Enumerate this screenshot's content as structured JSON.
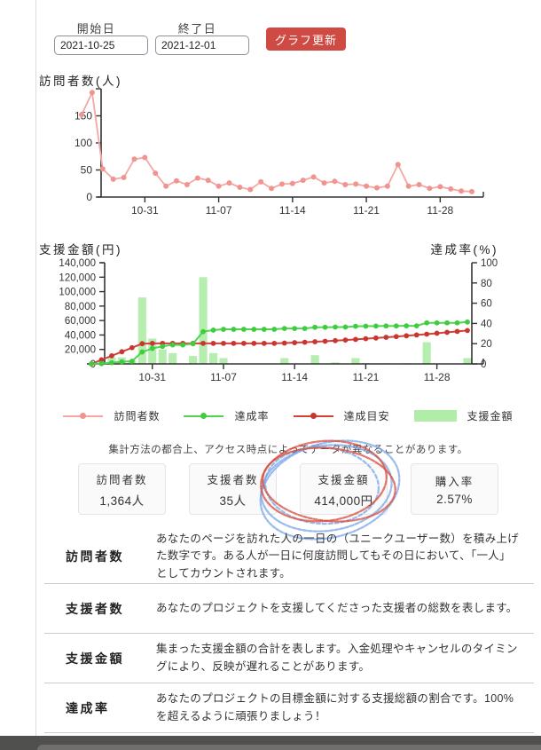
{
  "form": {
    "start_label": "開始日",
    "start_value": "2021-10-25",
    "end_label": "終了日",
    "end_value": "2021-12-01",
    "update_button": "グラフ更新"
  },
  "note": "集計方法の都合上、アクセス時点によってデータが異なることがあります。",
  "legend": [
    {
      "label": "訪問者数",
      "type": "line",
      "color": "#f4a7a3",
      "dot": "#ef948f"
    },
    {
      "label": "達成率",
      "type": "line",
      "color": "#52d353",
      "dot": "#3ecd3e"
    },
    {
      "label": "達成目安",
      "type": "line",
      "color": "#d2423b",
      "dot": "#c9362f"
    },
    {
      "label": "支援金額",
      "type": "bar",
      "color": "#b0eda9"
    }
  ],
  "stats": [
    {
      "label": "訪問者数",
      "value": "1,364人"
    },
    {
      "label": "支援者数",
      "value": "35人"
    },
    {
      "label": "支援金額",
      "value": "414,000円",
      "annotated": true
    },
    {
      "label": "購入率",
      "value": "2.57%"
    }
  ],
  "annotation": {
    "type": "hand-drawn-scribble-circles",
    "around": "支援金額",
    "colors": [
      "#d84b3a",
      "#7aa6e8"
    ]
  },
  "definitions": [
    {
      "term": "訪問者数",
      "description": "あなたのページを訪れた人の一日の（ユニークユーザー数）を積み上げた数字です。ある人が一日に何度訪問してもその日において、「一人」としてカウントされます。"
    },
    {
      "term": "支援者数",
      "description": "あなたのプロジェクトを支援してくださった支援者の総数を表します。"
    },
    {
      "term": "支援金額",
      "description": "集まった支援金額の合計を表します。入金処理やキャンセルのタイミングにより、反映が遅れることがあります。"
    },
    {
      "term": "達成率",
      "description": "あなたのプロジェクトの目標金額に対する支援総額の割合です。100%を超えるように頑張りましょう！"
    }
  ],
  "chart_data": [
    {
      "type": "line",
      "title": "訪問者数(人)",
      "series_name": "訪問者数",
      "color": "#f4a7a3",
      "dot_color": "#ef948f",
      "x_range": [
        "2021-10-25",
        "2021-12-01"
      ],
      "x_tick_labels": [
        "10-31",
        "11-07",
        "11-14",
        "11-21",
        "11-28"
      ],
      "x_tick_indices": [
        6,
        13,
        20,
        27,
        34
      ],
      "ylim": [
        0,
        200
      ],
      "y_ticks": [
        0,
        50,
        100,
        150
      ],
      "values": [
        152,
        193,
        52,
        33,
        36,
        70,
        73,
        44,
        20,
        30,
        23,
        35,
        31,
        20,
        26,
        18,
        14,
        28,
        16,
        24,
        25,
        31,
        37,
        26,
        29,
        23,
        24,
        20,
        17,
        20,
        60,
        20,
        23,
        16,
        19,
        15,
        11,
        10
      ]
    },
    {
      "type": "bar+line",
      "ylabel_left": "支援金額(円)",
      "ylabel_right": "達成率(%)",
      "ylim_left": [
        0,
        140000
      ],
      "y_ticks_left": [
        0,
        20000,
        40000,
        60000,
        80000,
        100000,
        120000,
        140000
      ],
      "ylim_right": [
        0,
        100
      ],
      "y_ticks_right": [
        0,
        20,
        40,
        60,
        80,
        100
      ],
      "x_range": [
        "2021-10-25",
        "2021-12-01"
      ],
      "x_tick_labels": [
        "10-31",
        "11-07",
        "11-14",
        "11-21",
        "11-28"
      ],
      "x_tick_indices": [
        6,
        13,
        20,
        27,
        34
      ],
      "series": [
        {
          "name": "支援金額",
          "type": "bar",
          "axis": "left",
          "color": "#b0eda9",
          "values": [
            1000,
            2000,
            9000,
            9000,
            5000,
            92000,
            35000,
            20000,
            15000,
            0,
            11000,
            120000,
            15000,
            8000,
            0,
            0,
            0,
            0,
            0,
            8000,
            0,
            0,
            12000,
            0,
            2000,
            0,
            8000,
            1000,
            1000,
            1000,
            0,
            1000,
            0,
            30000,
            0,
            0,
            0,
            8000
          ]
        },
        {
          "name": "達成率",
          "type": "line",
          "axis": "right",
          "color": "#52d353",
          "dot_color": "#3ecd3e",
          "values": [
            0.1,
            0.3,
            1.2,
            2.1,
            2.6,
            11.8,
            15.3,
            17.3,
            18.8,
            18.8,
            19.9,
            31.9,
            33.4,
            34.2,
            34.2,
            34.2,
            34.2,
            34.2,
            34.2,
            35.0,
            35.0,
            35.0,
            36.2,
            36.2,
            36.4,
            36.4,
            37.2,
            37.3,
            37.4,
            37.5,
            37.5,
            37.6,
            37.6,
            40.6,
            40.6,
            40.6,
            40.6,
            41.4
          ]
        },
        {
          "name": "達成目安",
          "type": "line",
          "axis": "right",
          "color": "#d2423b",
          "dot_color": "#c9362f",
          "values": [
            0,
            4,
            8,
            12,
            16,
            20,
            20.3,
            20.3,
            20.3,
            20.3,
            20.3,
            20.3,
            20.3,
            20.3,
            20.3,
            20.3,
            20.3,
            20.3,
            20.3,
            20.6,
            21,
            21.4,
            21.9,
            22.4,
            23,
            23.6,
            24.2,
            24.9,
            25.6,
            26.3,
            27,
            27.8,
            28.6,
            29.4,
            30.3,
            31.2,
            32.1,
            33
          ]
        }
      ]
    }
  ]
}
